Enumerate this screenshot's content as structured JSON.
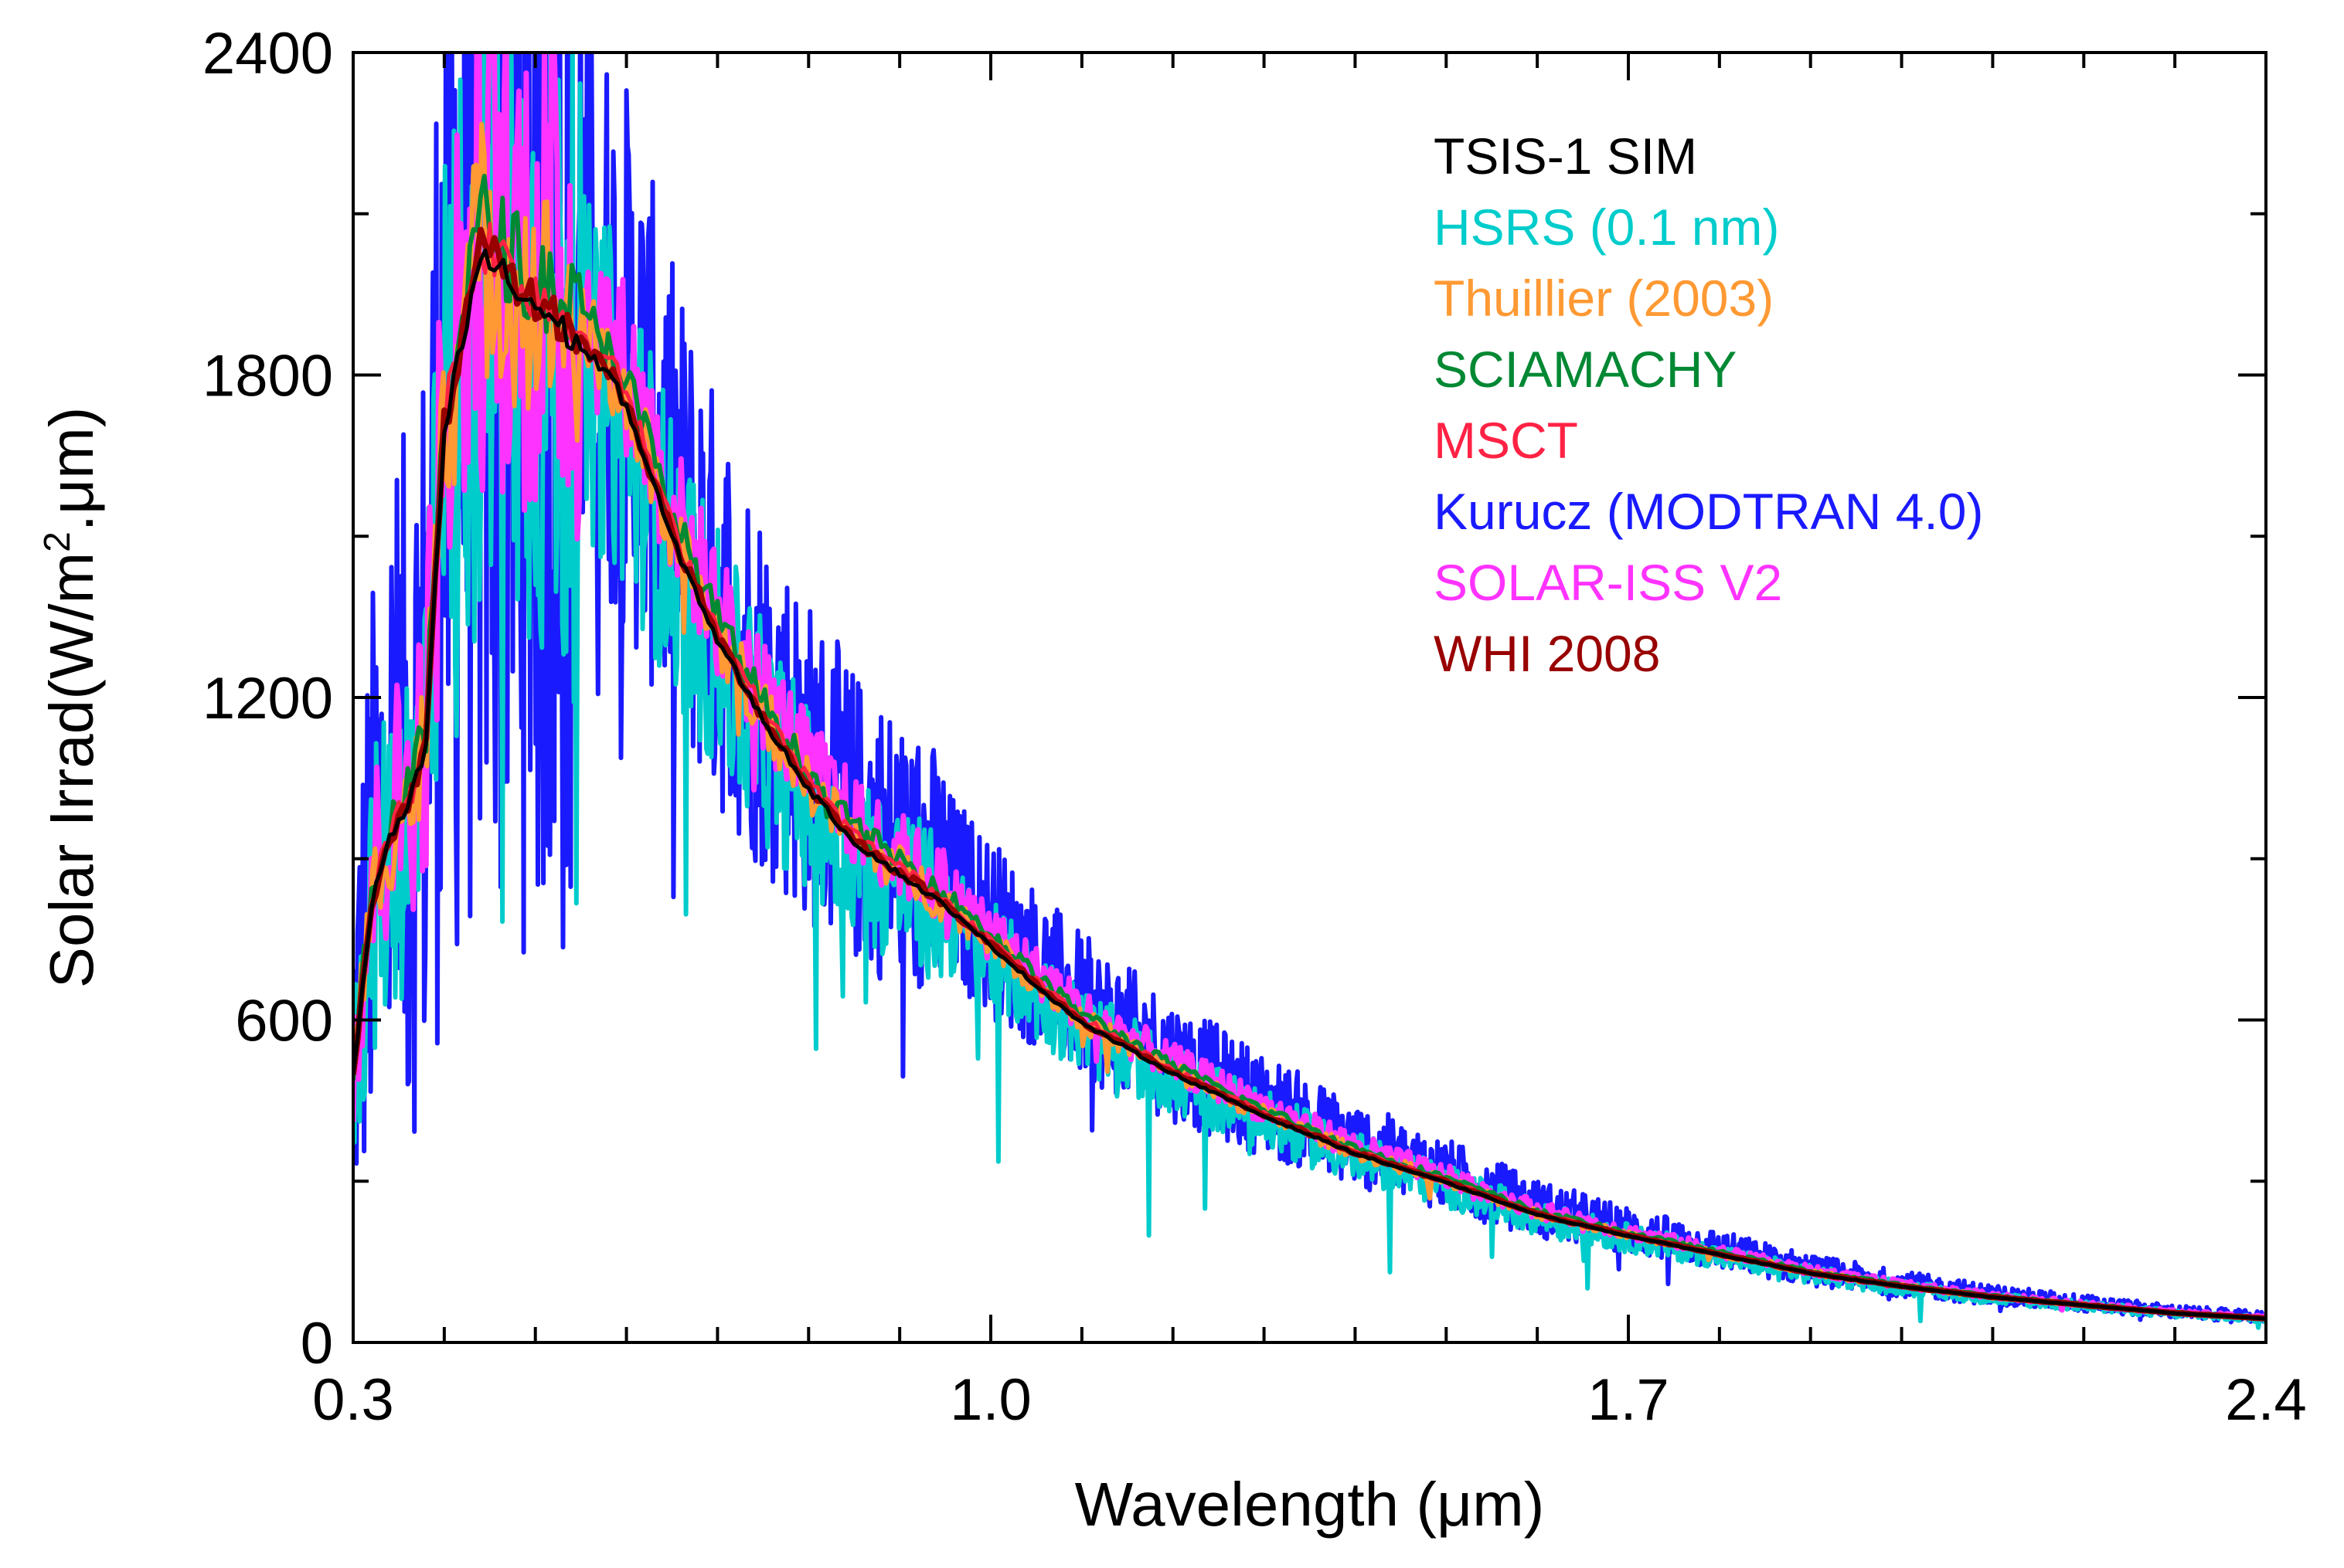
{
  "chart_data": {
    "type": "line",
    "title": "",
    "xlabel": "Wavelength (μm)",
    "ylabel_main": "Solar Irrad(W/m",
    "ylabel_sup": "2",
    "ylabel_tail": ".μm)",
    "xlim": [
      0.3,
      2.4
    ],
    "ylim": [
      0,
      2400
    ],
    "xticks": [
      0.3,
      1.0,
      1.7,
      2.4
    ],
    "xtick_labels": [
      "0.3",
      "1.0",
      "1.7",
      "2.4"
    ],
    "yticks": [
      0,
      600,
      1200,
      1800,
      2400
    ],
    "ytick_labels": [
      "0",
      "600",
      "1200",
      "1800",
      "2400"
    ],
    "grid": false,
    "legend_position": "top-right",
    "series": [
      {
        "name": "TSIS-1 SIM",
        "color": "#000000",
        "style": "smooth"
      },
      {
        "name": "HSRS (0.1 nm)",
        "color": "#00cccc",
        "style": "noisy"
      },
      {
        "name": "Thuillier (2003)",
        "color": "#ff9933",
        "style": "medium"
      },
      {
        "name": "SCIAMACHY",
        "color": "#008833",
        "style": "medium"
      },
      {
        "name": "MSCT",
        "color": "#ff2244",
        "style": "smooth"
      },
      {
        "name": "Kurucz (MODTRAN 4.0)",
        "color": "#1a1aff",
        "style": "noisy"
      },
      {
        "name": "SOLAR-ISS V2",
        "color": "#ff33ff",
        "style": "medium"
      },
      {
        "name": "WHI 2008",
        "color": "#990000",
        "style": "smooth"
      }
    ],
    "envelope": {
      "x": [
        0.3,
        0.32,
        0.34,
        0.36,
        0.38,
        0.4,
        0.42,
        0.44,
        0.46,
        0.48,
        0.5,
        0.52,
        0.55,
        0.58,
        0.6,
        0.65,
        0.7,
        0.75,
        0.8,
        0.85,
        0.9,
        0.95,
        1.0,
        1.05,
        1.1,
        1.2,
        1.3,
        1.4,
        1.5,
        1.6,
        1.7,
        1.8,
        1.9,
        2.0,
        2.1,
        2.2,
        2.3,
        2.4
      ],
      "values": [
        500,
        820,
        950,
        1000,
        1120,
        1710,
        1880,
        2040,
        2020,
        1970,
        1950,
        1920,
        1870,
        1820,
        1760,
        1510,
        1320,
        1170,
        1040,
        940,
        880,
        820,
        745,
        670,
        600,
        505,
        425,
        355,
        300,
        240,
        200,
        165,
        130,
        105,
        85,
        70,
        55,
        45
      ]
    }
  }
}
